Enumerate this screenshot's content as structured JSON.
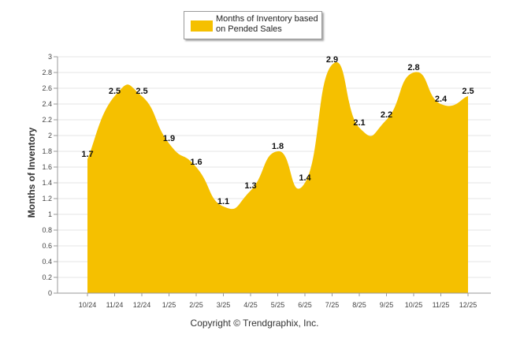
{
  "chart_data": {
    "type": "area",
    "categories": [
      "10/24",
      "11/24",
      "12/24",
      "1/25",
      "2/25",
      "3/25",
      "4/25",
      "5/25",
      "6/25",
      "7/25",
      "8/25",
      "9/25",
      "10/25",
      "11/25",
      "12/25"
    ],
    "series": [
      {
        "name": "Months of Inventory based on Pended Sales",
        "values": [
          1.7,
          2.5,
          2.5,
          1.9,
          1.6,
          1.1,
          1.3,
          1.8,
          1.4,
          2.9,
          2.1,
          2.2,
          2.8,
          2.4,
          2.5
        ]
      }
    ],
    "data_labels": [
      "1.7",
      "2.5",
      "2.5",
      "1.9",
      "1.6",
      "1.1",
      "1.3",
      "1.8",
      "1.4",
      "2.9",
      "2.1",
      "2.2",
      "2.8",
      "2.4",
      "2.5"
    ],
    "ylabel": "Months of Inventory",
    "xlabel": "",
    "ylim": [
      0,
      3
    ],
    "yticks": [
      "0",
      "0.2",
      "0.4",
      "0.6",
      "0.8",
      "1",
      "1.2",
      "1.4",
      "1.6",
      "1.8",
      "2",
      "2.2",
      "2.4",
      "2.6",
      "2.8",
      "3"
    ],
    "grid": true,
    "legend_position": "top-center",
    "fill_color": "#F5C000"
  },
  "legend": {
    "label": "Months of Inventory based on Pended Sales"
  },
  "copyright": "Copyright © Trendgraphix, Inc."
}
